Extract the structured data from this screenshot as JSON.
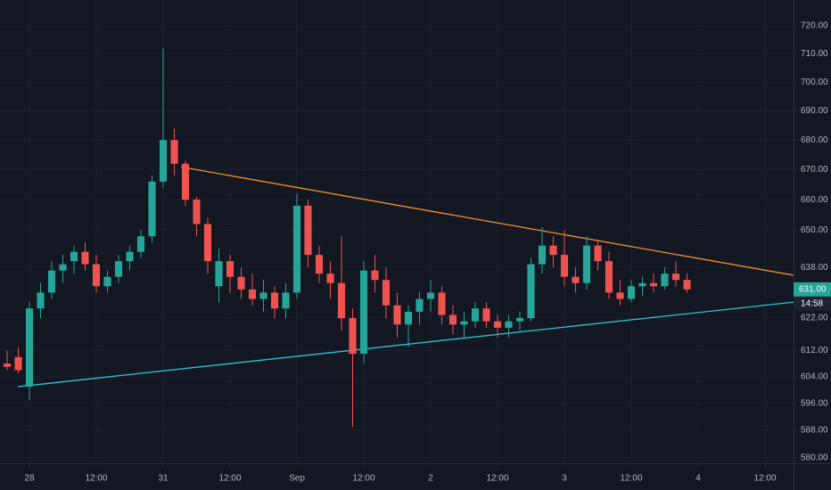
{
  "chart_data": {
    "type": "candlestick",
    "log_scale": true,
    "grid": true,
    "up_color": "#26a69a",
    "down_color": "#ef5350",
    "open": [
      608,
      610,
      601,
      625,
      630,
      637,
      640,
      643,
      639,
      632,
      635,
      640,
      643,
      648,
      666,
      680,
      672,
      660,
      652,
      632,
      640,
      635,
      631,
      628,
      630,
      625,
      630,
      658,
      642,
      636,
      633,
      622,
      611,
      637,
      634,
      626,
      620,
      624,
      628,
      630,
      623,
      620,
      621,
      625,
      621,
      619,
      621,
      622,
      639,
      645,
      642,
      635,
      633,
      645,
      640,
      630,
      628,
      632,
      633,
      632,
      636,
      634
    ],
    "high": [
      612,
      613,
      627,
      633,
      640,
      642,
      645,
      646,
      642,
      637,
      642,
      645,
      650,
      668,
      712,
      684,
      673,
      661,
      654,
      644,
      642,
      638,
      636,
      634,
      632,
      633,
      662,
      660,
      645,
      640,
      648,
      625,
      640,
      642,
      638,
      630,
      626,
      630,
      634,
      632,
      626,
      624,
      627,
      627,
      623,
      623,
      624,
      641,
      651,
      648,
      650,
      638,
      648,
      647,
      643,
      634,
      634,
      635,
      636,
      638,
      640,
      636
    ],
    "low": [
      606,
      605,
      597,
      622,
      628,
      633,
      636,
      637,
      630,
      630,
      633,
      637,
      641,
      646,
      664,
      668,
      658,
      648,
      636,
      627,
      630,
      628,
      626,
      624,
      622,
      622,
      628,
      638,
      633,
      628,
      618,
      589,
      608,
      630,
      622,
      616,
      613,
      620,
      624,
      620,
      617,
      616,
      619,
      619,
      616,
      616,
      618,
      621,
      636,
      638,
      632,
      630,
      631,
      637,
      628,
      626,
      627,
      629,
      630,
      631,
      632,
      630
    ],
    "close": [
      607,
      606,
      625,
      630,
      637,
      639,
      643,
      639,
      632,
      635,
      640,
      643,
      648,
      666,
      680,
      672,
      660,
      652,
      640,
      640,
      635,
      631,
      628,
      630,
      625,
      630,
      658,
      642,
      636,
      633,
      622,
      611,
      637,
      634,
      626,
      620,
      624,
      628,
      630,
      623,
      620,
      621,
      625,
      621,
      619,
      621,
      622,
      639,
      645,
      642,
      635,
      633,
      645,
      640,
      630,
      628,
      632,
      633,
      632,
      636,
      634,
      631
    ],
    "xlim": [
      -0.64,
      70.56
    ],
    "xticks": [
      {
        "value": 2,
        "label": "28"
      },
      {
        "value": 8,
        "label": "12:00"
      },
      {
        "value": 14,
        "label": "31"
      },
      {
        "value": 20,
        "label": "12:00"
      },
      {
        "value": 26,
        "label": "Sep"
      },
      {
        "value": 32,
        "label": "12:00"
      },
      {
        "value": 38,
        "label": "2"
      },
      {
        "value": 44,
        "label": "12:00"
      },
      {
        "value": 50,
        "label": "3"
      },
      {
        "value": 56,
        "label": "12:00"
      },
      {
        "value": 62,
        "label": "4"
      },
      {
        "value": 68,
        "label": "12:00"
      }
    ],
    "ylim": [
      578.4,
      729.4
    ],
    "yticks": [
      {
        "value": 720,
        "label": "720.00"
      },
      {
        "value": 710,
        "label": "710.00"
      },
      {
        "value": 700,
        "label": "700.00"
      },
      {
        "value": 690,
        "label": "690.00"
      },
      {
        "value": 680,
        "label": "680.00"
      },
      {
        "value": 670,
        "label": "670.00"
      },
      {
        "value": 660,
        "label": "660.00"
      },
      {
        "value": 650,
        "label": "650.00"
      },
      {
        "value": 638,
        "label": "638.00"
      },
      {
        "value": 622,
        "label": "622.00"
      },
      {
        "value": 612,
        "label": "612.00"
      },
      {
        "value": 604,
        "label": "604.00"
      },
      {
        "value": 596,
        "label": "596.00"
      },
      {
        "value": 588,
        "label": "588.00"
      },
      {
        "value": 580,
        "label": "580.00"
      }
    ],
    "current_price": {
      "value": 631,
      "label": "631.00",
      "color": "#26a69a"
    },
    "countdown": "14:58",
    "trendlines": [
      {
        "color": "#f0902c",
        "x": [
          15.6,
          70.56
        ],
        "y": [
          670.9,
          635.5
        ]
      },
      {
        "color": "#2ec4d6",
        "x": [
          0.96,
          70.56
        ],
        "y": [
          601,
          627
        ]
      }
    ]
  }
}
